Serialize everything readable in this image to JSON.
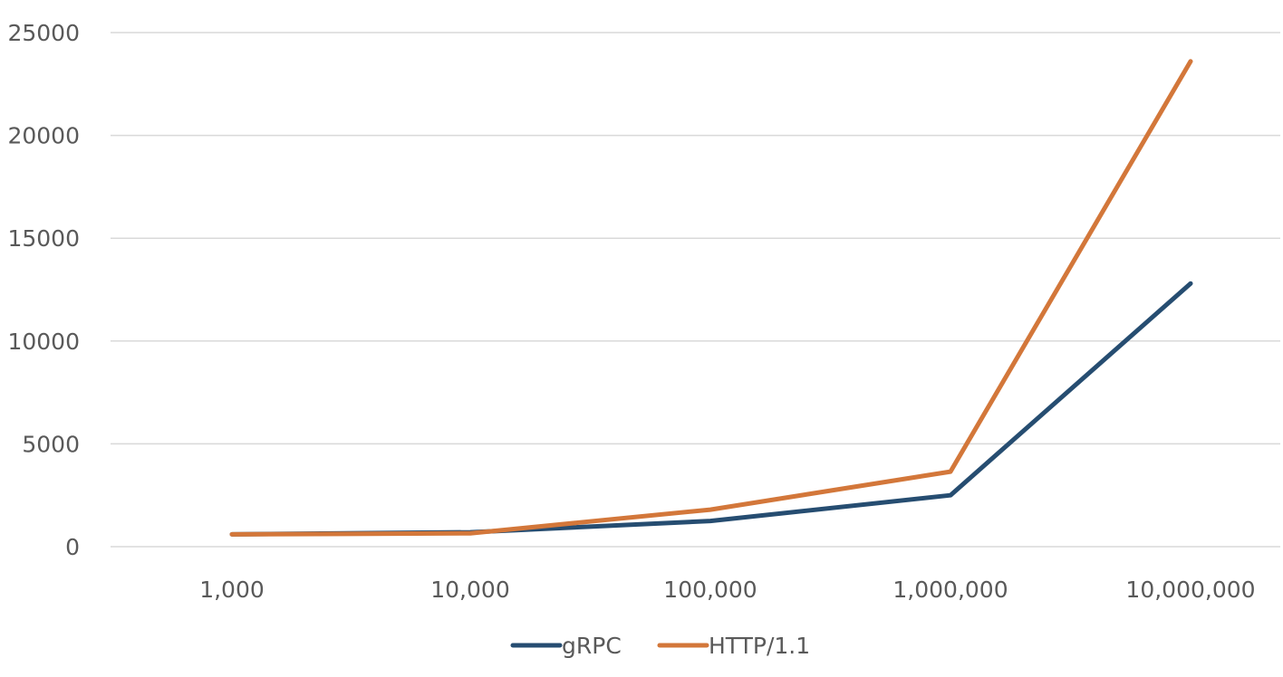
{
  "chart_data": {
    "type": "line",
    "categories": [
      "1,000",
      "10,000",
      "100,000",
      "1,000,000",
      "10,000,000"
    ],
    "ylim": [
      0,
      25000
    ],
    "y_ticks": [
      0,
      5000,
      10000,
      15000,
      20000,
      25000
    ],
    "y_tick_labels": [
      "0",
      "5000",
      "10000",
      "15000",
      "20000",
      "25000"
    ],
    "grid": true,
    "legend_position": "bottom",
    "series": [
      {
        "name": "gRPC",
        "color": "#264d71",
        "values": [
          600,
          700,
          1250,
          2500,
          12800
        ]
      },
      {
        "name": "HTTP/1.1",
        "color": "#d3773a",
        "values": [
          600,
          650,
          1800,
          3650,
          23600
        ]
      }
    ]
  }
}
